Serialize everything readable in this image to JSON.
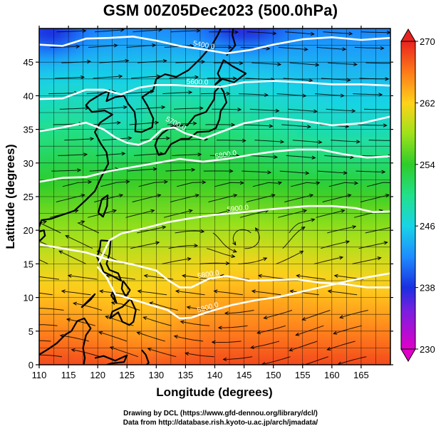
{
  "title": "GSM 00Z05Dec2023 (500.0hPa)",
  "x_axis_label": "Longitude (degrees)",
  "y_axis_label": "Latitude  (degrees)",
  "credit_line_1": "Drawing by DCL (https://www.gfd-dennou.org/library/dcl/)",
  "credit_line_2": "Data from http://database.rish.kyoto-u.ac.jp/arch/jmadata/",
  "chart_data": {
    "type": "heatmap",
    "title": "GSM 00Z05Dec2023 (500.0hPa)",
    "xlabel": "Longitude (degrees)",
    "ylabel": "Latitude  (degrees)",
    "xlim": [
      110,
      170
    ],
    "ylim": [
      0,
      50
    ],
    "x_ticks": [
      110,
      115,
      120,
      125,
      130,
      135,
      140,
      145,
      150,
      155,
      160,
      165
    ],
    "y_ticks": [
      0,
      5,
      10,
      15,
      20,
      25,
      30,
      35,
      40,
      45
    ],
    "colorbar": {
      "min": 230,
      "max": 270,
      "ticks": [
        230,
        238,
        246,
        254,
        262,
        270
      ],
      "stops": [
        {
          "value": 230,
          "color": "#e000c8"
        },
        {
          "value": 235,
          "color": "#7a1fe0"
        },
        {
          "value": 238,
          "color": "#1a2fe0"
        },
        {
          "value": 242,
          "color": "#1e8cff"
        },
        {
          "value": 246,
          "color": "#19d4e6"
        },
        {
          "value": 250,
          "color": "#22e08a"
        },
        {
          "value": 254,
          "color": "#2ecc2a"
        },
        {
          "value": 258,
          "color": "#9ee21a"
        },
        {
          "value": 262,
          "color": "#ffd21a"
        },
        {
          "value": 266,
          "color": "#ff7a1a"
        },
        {
          "value": 270,
          "color": "#e8231e"
        }
      ]
    },
    "height_contours": [
      {
        "label": "5400.0",
        "points": [
          [
            110,
            47.6
          ],
          [
            114,
            47.4
          ],
          [
            118,
            48.5
          ],
          [
            122,
            48.6
          ],
          [
            126,
            48.8
          ],
          [
            130,
            48.2
          ],
          [
            134,
            47.4
          ],
          [
            138,
            46.9
          ],
          [
            142,
            46.3
          ],
          [
            146,
            46.8
          ],
          [
            150,
            47.6
          ],
          [
            155,
            48.4
          ],
          [
            160,
            48.7
          ],
          [
            165,
            48.3
          ],
          [
            170,
            48.6
          ]
        ]
      },
      {
        "label": "5600.0",
        "points": [
          [
            110,
            39.5
          ],
          [
            114,
            39.6
          ],
          [
            118,
            40.9
          ],
          [
            121,
            40.9
          ],
          [
            124,
            40.2
          ],
          [
            127,
            41.2
          ],
          [
            130,
            41.6
          ],
          [
            133,
            41.6
          ],
          [
            137,
            41.4
          ],
          [
            141,
            41.3
          ],
          [
            145,
            42.0
          ],
          [
            150,
            42.2
          ],
          [
            155,
            42.0
          ],
          [
            160,
            41.7
          ],
          [
            165,
            41.7
          ],
          [
            170,
            41.5
          ]
        ]
      },
      {
        "label": "5700.0",
        "points": [
          [
            110,
            34.7
          ],
          [
            114,
            35.3
          ],
          [
            118,
            36.0
          ],
          [
            121,
            35.0
          ],
          [
            123,
            33.8
          ],
          [
            125,
            33.0
          ],
          [
            127,
            32.7
          ],
          [
            129,
            33.4
          ],
          [
            131,
            35.0
          ],
          [
            133,
            35.3
          ],
          [
            135,
            34.4
          ],
          [
            138,
            33.6
          ],
          [
            141,
            34.6
          ],
          [
            145,
            35.9
          ],
          [
            150,
            36.7
          ],
          [
            155,
            36.3
          ],
          [
            160,
            35.6
          ],
          [
            165,
            35.9
          ],
          [
            170,
            36.9
          ]
        ]
      },
      {
        "label": "5800.0",
        "points": [
          [
            110,
            27.2
          ],
          [
            114,
            27.8
          ],
          [
            118,
            27.9
          ],
          [
            122,
            28.8
          ],
          [
            126,
            29.4
          ],
          [
            130,
            30.0
          ],
          [
            134,
            30.6
          ],
          [
            138,
            30.2
          ],
          [
            142,
            30.6
          ],
          [
            146,
            31.2
          ],
          [
            150,
            31.7
          ],
          [
            154,
            32.0
          ],
          [
            158,
            32.0
          ],
          [
            162,
            31.3
          ],
          [
            166,
            30.8
          ],
          [
            170,
            31.0
          ]
        ]
      },
      {
        "label": "5800.0",
        "points": [
          [
            110,
            17.9
          ],
          [
            114,
            17.3
          ],
          [
            118,
            16.7
          ],
          [
            122,
            15.6
          ],
          [
            126,
            14.9
          ],
          [
            130,
            14.0
          ],
          [
            132,
            12.6
          ],
          [
            134,
            11.5
          ],
          [
            136,
            11.5
          ],
          [
            139,
            12.8
          ],
          [
            142,
            13.2
          ],
          [
            146,
            12.5
          ],
          [
            150,
            12.6
          ],
          [
            154,
            12.7
          ],
          [
            158,
            12.2
          ],
          [
            162,
            12.0
          ],
          [
            166,
            11.5
          ],
          [
            170,
            11.5
          ]
        ]
      },
      {
        "label": "5900.0",
        "points": [
          [
            120.2,
            15.2
          ],
          [
            122,
            18.5
          ],
          [
            124,
            19.5
          ],
          [
            128,
            20.3
          ],
          [
            132,
            21.2
          ],
          [
            136,
            21.8
          ],
          [
            140,
            22.3
          ],
          [
            144,
            22.6
          ],
          [
            148,
            23.0
          ],
          [
            152,
            23.3
          ],
          [
            156,
            23.6
          ],
          [
            160,
            23.6
          ],
          [
            164,
            23.3
          ],
          [
            167,
            22.7
          ],
          [
            170,
            22.8
          ]
        ]
      },
      {
        "label": "5900.0",
        "points": [
          [
            120.0,
            14.5
          ],
          [
            121.5,
            13.0
          ],
          [
            123,
            10.5
          ],
          [
            126,
            9.7
          ],
          [
            129,
            8.9
          ],
          [
            132,
            8.1
          ],
          [
            134,
            6.9
          ],
          [
            136,
            7.0
          ],
          [
            139,
            7.9
          ],
          [
            143,
            8.9
          ],
          [
            147,
            9.6
          ],
          [
            151,
            10.1
          ],
          [
            155,
            10.9
          ],
          [
            159,
            11.7
          ],
          [
            163,
            12.5
          ],
          [
            166,
            13.0
          ],
          [
            170,
            13.6
          ]
        ]
      }
    ]
  }
}
